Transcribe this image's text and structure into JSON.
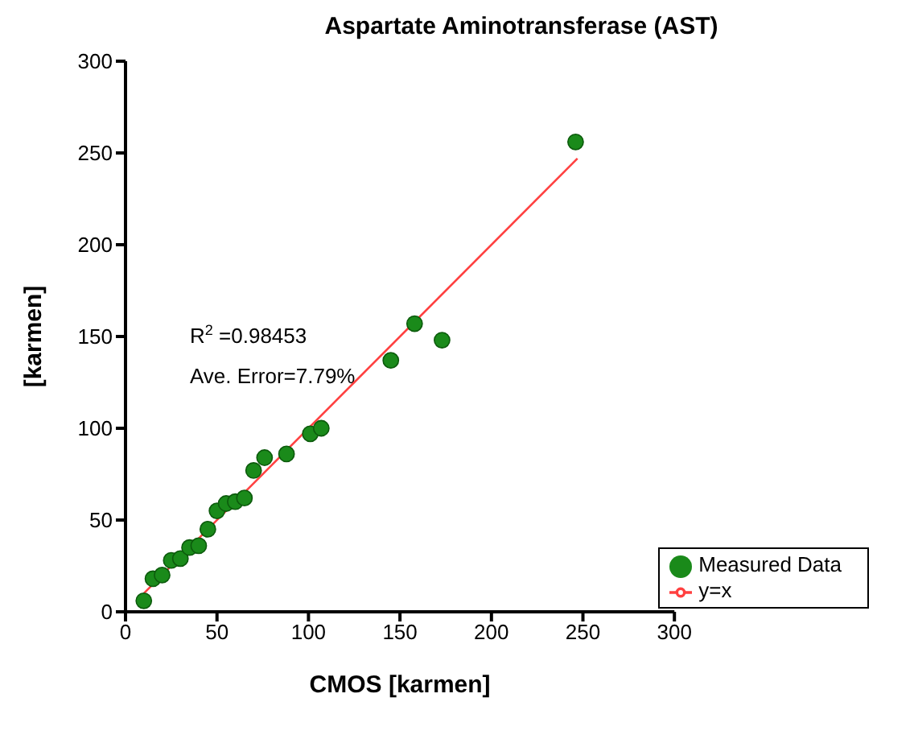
{
  "chart_data": {
    "type": "scatter",
    "title": "Aspartate Aminotransferase (AST)",
    "xlabel": "CMOS [karmen]",
    "ylabel": "[karmen]",
    "annotations": [
      "R$^{2}$=0.98453",
      "Ave. Error=7.79%"
    ],
    "series": [
      {
        "name": "Measured Data",
        "type": "scatter",
        "color": "#1a8a1a",
        "marker": "circle",
        "x": [
          10,
          15,
          20,
          25,
          30,
          35,
          40,
          45,
          50,
          55,
          60,
          65,
          70,
          76,
          88,
          101,
          107,
          145,
          158,
          173,
          246
        ],
        "values": [
          6,
          18,
          20,
          28,
          29,
          35,
          36,
          45,
          55,
          59,
          60,
          62,
          77,
          84,
          86,
          97,
          100,
          137,
          157,
          148,
          256
        ]
      },
      {
        "name": "y=x",
        "type": "line",
        "color": "#ff4040",
        "marker": "none",
        "line_style": "solid",
        "x": [
          10,
          247
        ],
        "values": [
          10,
          247
        ]
      }
    ],
    "xlim": [
      0,
      300
    ],
    "xticks": [
      0,
      50,
      100,
      150,
      200,
      250,
      300
    ],
    "ylim": [
      0,
      300
    ],
    "yticks": [
      0,
      50,
      100,
      150,
      200,
      250,
      300
    ],
    "grid": false,
    "legend": "bottom right"
  }
}
